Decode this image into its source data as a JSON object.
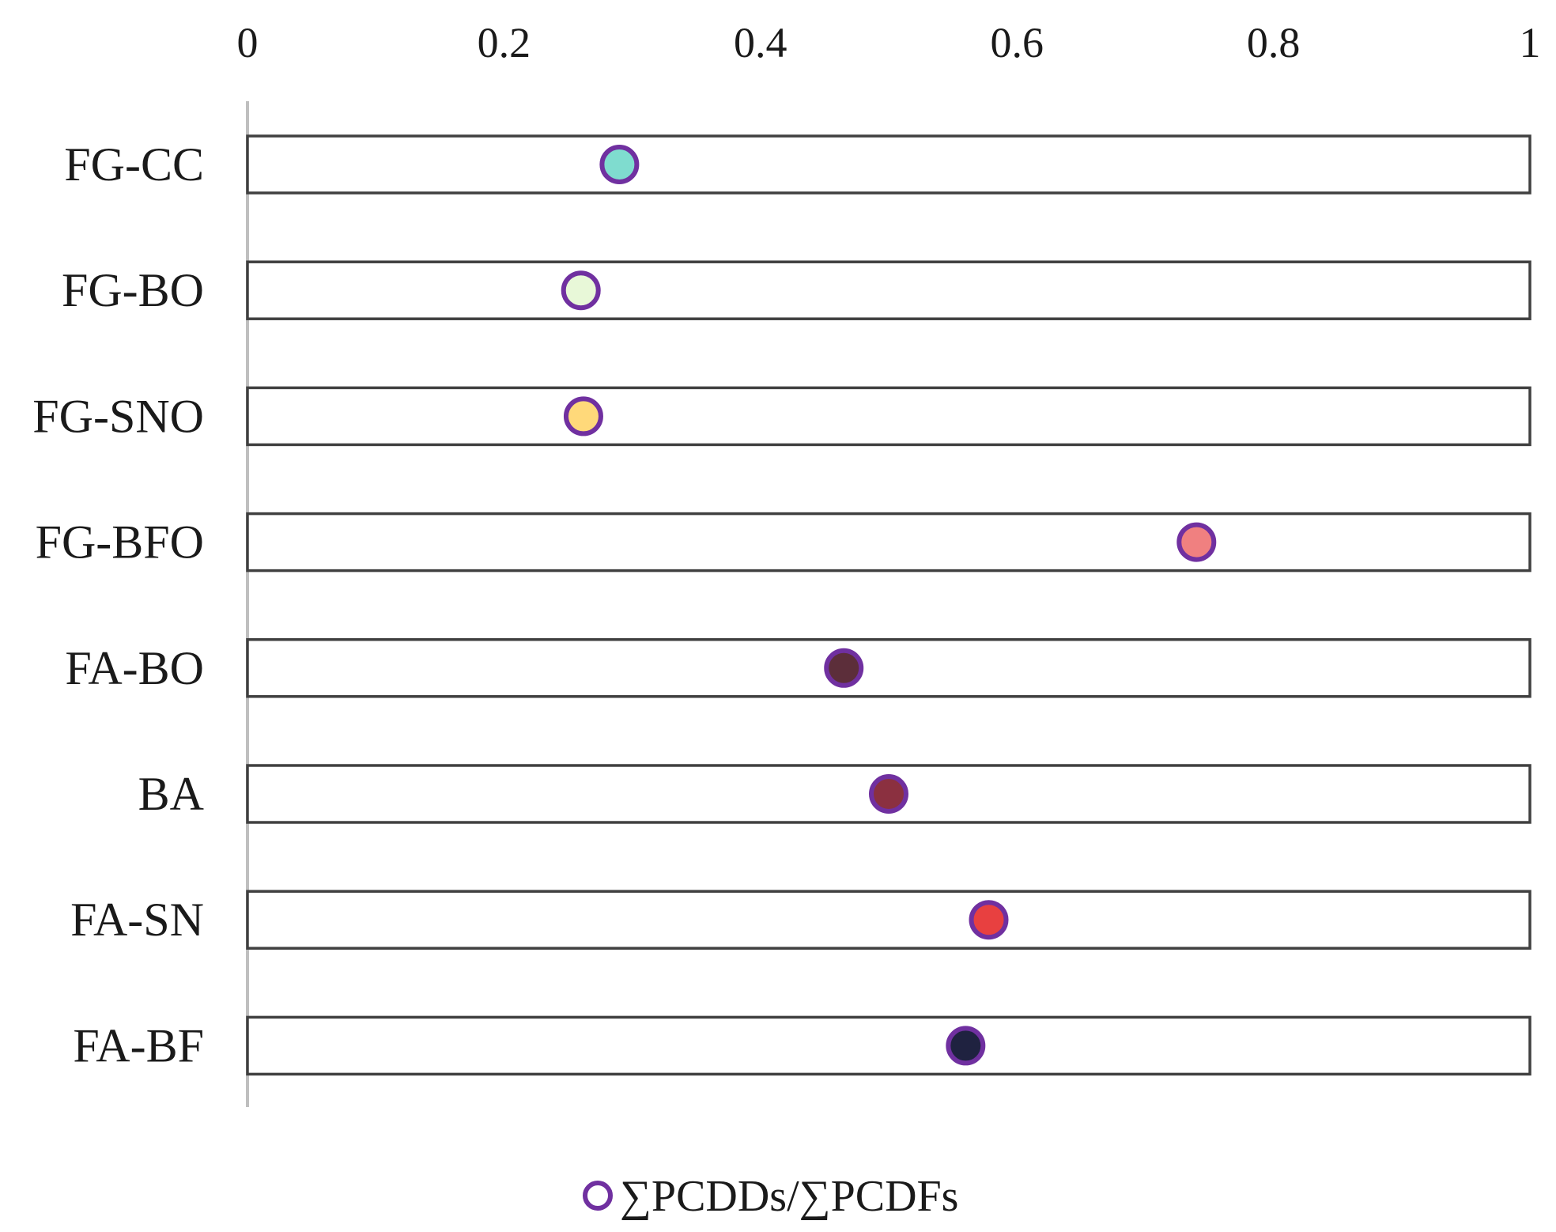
{
  "chart_data": {
    "type": "scatter",
    "title": "",
    "xlabel": "",
    "ylabel": "",
    "xlim": [
      0,
      1
    ],
    "x_ticks": [
      "0",
      "0.2",
      "0.4",
      "0.6",
      "0.8",
      "1"
    ],
    "x_tick_values": [
      0,
      0.2,
      0.4,
      0.6,
      0.8,
      1
    ],
    "x_axis_position": "top",
    "grid": false,
    "legend_position": "bottom-center",
    "categories": [
      "FG-CC",
      "FG-BO",
      "FG-SNO",
      "FG-BFO",
      "FA-BO",
      "BA",
      "FA-SN",
      "FA-BF"
    ],
    "series": [
      {
        "name": "∑PCDDs/∑PCDFs",
        "marker_edge_color": "#7030a0",
        "values": [
          0.29,
          0.26,
          0.262,
          0.74,
          0.465,
          0.5,
          0.578,
          0.56
        ],
        "marker_fill_colors": [
          "#7fdccf",
          "#e8f8d8",
          "#ffd97a",
          "#f08080",
          "#5c2e3a",
          "#8b3040",
          "#e84040",
          "#1f2240"
        ]
      }
    ]
  }
}
